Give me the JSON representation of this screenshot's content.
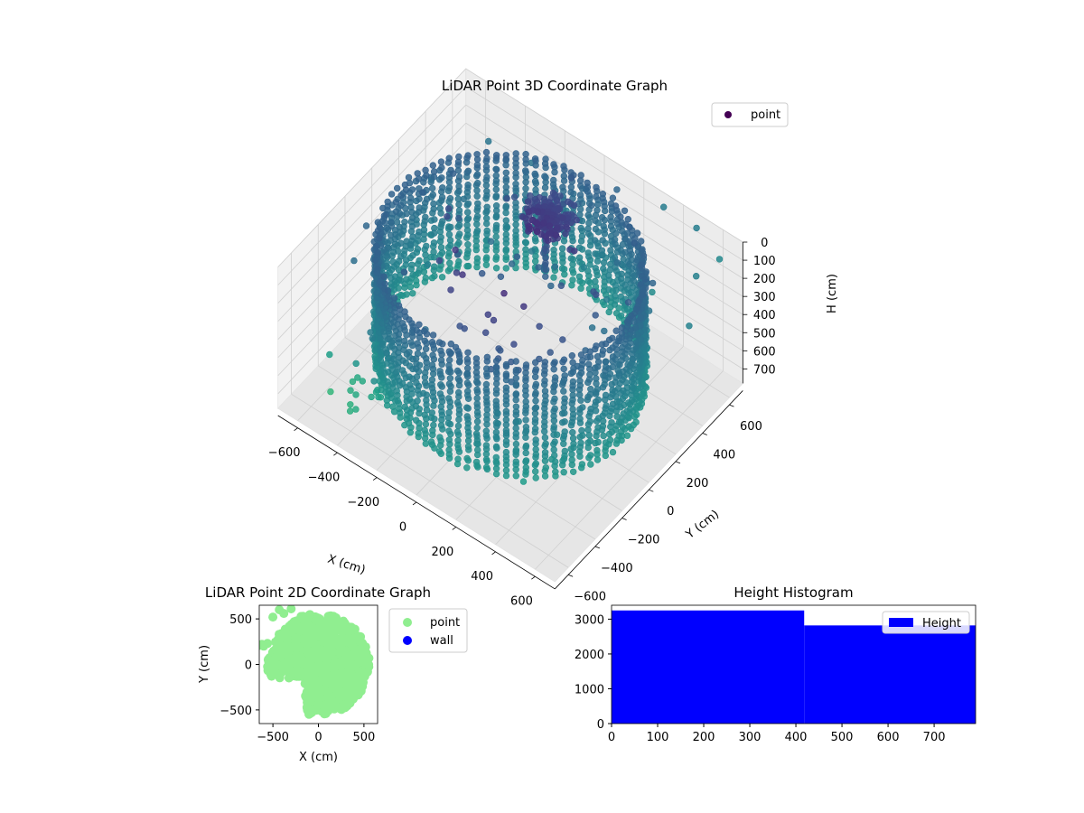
{
  "chart_data": [
    {
      "id": "scatter3d",
      "type": "scatter",
      "title": "LiDAR Point 3D Coordinate Graph",
      "xlabel": "X (cm)",
      "ylabel": "Y (cm)",
      "zlabel": "H (cm)",
      "xlim": [
        -700,
        700
      ],
      "ylim": [
        -700,
        700
      ],
      "zlim": [
        0,
        780
      ],
      "z_inverted": true,
      "xticks": [
        -600,
        -400,
        -200,
        0,
        200,
        400,
        600
      ],
      "yticks": [
        -600,
        -400,
        -200,
        0,
        200,
        400,
        600
      ],
      "zticks": [
        0,
        100,
        200,
        300,
        400,
        500,
        600,
        700
      ],
      "grid": true,
      "legend": {
        "placement": "upper-right",
        "entries": [
          {
            "label": "point",
            "color": "#440154"
          }
        ]
      },
      "colormap": "viridis",
      "series": [
        {
          "name": "point",
          "description_of_shape": "cylindrical wall of points around the origin plus a ceiling cluster and sparse outliers",
          "wall_radius": 560,
          "wall_height_range": [
            0,
            660
          ],
          "ceiling_center": [
            0,
            300,
            30
          ],
          "outliers_sample": [
            [
              600,
              500,
              100
            ],
            [
              650,
              600,
              50
            ],
            [
              700,
              300,
              150
            ],
            [
              500,
              650,
              20
            ],
            [
              300,
              700,
              80
            ]
          ]
        }
      ]
    },
    {
      "id": "scatter2d",
      "type": "scatter",
      "title": "LiDAR Point 2D Coordinate Graph",
      "xlabel": "X (cm)",
      "ylabel": "Y (cm)",
      "xlim": [
        -650,
        650
      ],
      "ylim": [
        -650,
        650
      ],
      "xticks": [
        -500,
        0,
        500
      ],
      "yticks": [
        -500,
        0,
        500
      ],
      "legend": {
        "placement": "outside-right",
        "entries": [
          {
            "label": "point",
            "color": "#90ee90"
          },
          {
            "label": "wall",
            "color": "#0000ff"
          }
        ]
      },
      "series": [
        {
          "name": "point",
          "color": "#90ee90"
        },
        {
          "name": "wall",
          "color": "#0000ff"
        }
      ]
    },
    {
      "id": "histogram",
      "type": "bar",
      "title": "Height Histogram",
      "xlim": [
        0,
        790
      ],
      "ylim": [
        0,
        3400
      ],
      "xticks": [
        0,
        100,
        200,
        300,
        400,
        500,
        600,
        700
      ],
      "yticks": [
        0,
        1000,
        2000,
        3000
      ],
      "legend": {
        "placement": "upper-right",
        "entries": [
          {
            "label": "Height",
            "color": "#0000ff"
          }
        ]
      },
      "bins": [
        {
          "x0": 0,
          "x1": 418,
          "count": 3250
        },
        {
          "x0": 418,
          "x1": 790,
          "count": 2820
        }
      ]
    }
  ]
}
